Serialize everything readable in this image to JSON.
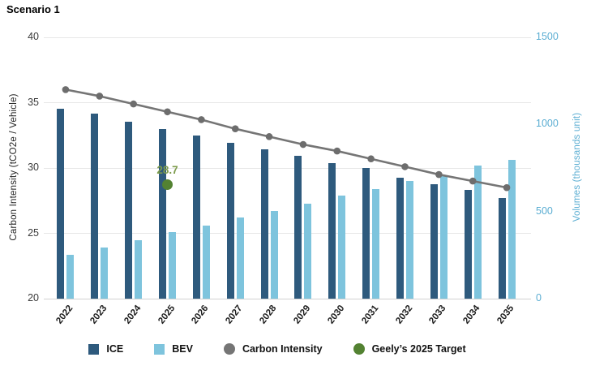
{
  "title": "Scenario 1",
  "chart_data": {
    "type": "bar",
    "title": "Scenario 1",
    "categories": [
      "2022",
      "2023",
      "2024",
      "2025",
      "2026",
      "2027",
      "2028",
      "2029",
      "2030",
      "2031",
      "2032",
      "2033",
      "2034",
      "2035"
    ],
    "left_axis": {
      "label": "Carbon Intensity (tCO2e / Vehicle)",
      "min": 20,
      "max": 40,
      "ticks": [
        20,
        25,
        30,
        35,
        40
      ]
    },
    "right_axis": {
      "label": "Volumes (thousands unit)",
      "min": 0,
      "max": 1500,
      "ticks": [
        0,
        500,
        1000,
        1500
      ]
    },
    "grid": "horizontal",
    "legend_position": "bottom",
    "series": [
      {
        "name": "ICE",
        "type": "bar",
        "axis": "right",
        "color": "#2e5a7d",
        "values": [
          1090,
          1060,
          1015,
          975,
          935,
          895,
          855,
          820,
          780,
          750,
          695,
          655,
          625,
          580
        ]
      },
      {
        "name": "BEV",
        "type": "bar",
        "axis": "right",
        "color": "#7ec4dd",
        "values": [
          250,
          295,
          335,
          380,
          420,
          465,
          505,
          545,
          590,
          630,
          675,
          705,
          765,
          795
        ]
      },
      {
        "name": "Carbon Intensity",
        "type": "line",
        "axis": "left",
        "color": "#757575",
        "marker_color": "#6d6d6d",
        "values": [
          36.0,
          35.5,
          34.9,
          34.3,
          33.7,
          33.0,
          32.4,
          31.8,
          31.3,
          30.7,
          30.1,
          29.5,
          29.0,
          28.5
        ]
      }
    ],
    "target_point": {
      "name": "Geely’s 2025 Target",
      "category": "2025",
      "value": 28.7,
      "label": "28.7",
      "color": "#538232",
      "label_color": "#7d9b4c"
    },
    "legend": [
      {
        "label": "ICE",
        "marker": "square",
        "color": "#2e5a7d"
      },
      {
        "label": "BEV",
        "marker": "square",
        "color": "#7ec4dd"
      },
      {
        "label": "Carbon Intensity",
        "marker": "circle",
        "color": "#757575"
      },
      {
        "label": "Geely’s 2025 Target",
        "marker": "circle",
        "color": "#538232"
      }
    ]
  }
}
